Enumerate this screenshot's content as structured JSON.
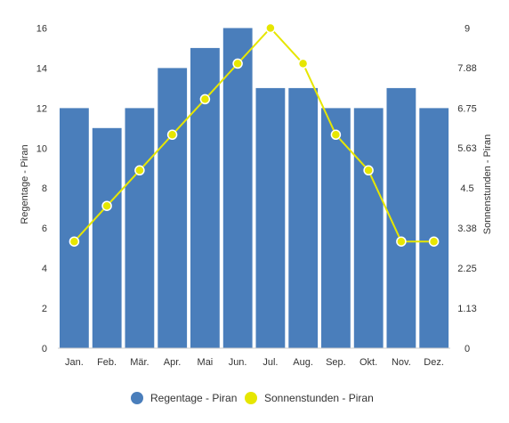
{
  "chart_data": {
    "type": "bar",
    "categories": [
      "Jan.",
      "Feb.",
      "Mär.",
      "Apr.",
      "Mai",
      "Jun.",
      "Jul.",
      "Aug.",
      "Sep.",
      "Okt.",
      "Nov.",
      "Dez."
    ],
    "series": [
      {
        "name": "Regentage - Piran",
        "type": "bar",
        "axis": "left",
        "color": "#4a7ebb",
        "values": [
          12,
          11,
          12,
          14,
          15,
          16,
          13,
          13,
          12,
          12,
          13,
          12
        ]
      },
      {
        "name": "Sonnenstunden - Piran",
        "type": "line",
        "axis": "right",
        "color": "#e6e600",
        "values": [
          3,
          4,
          5,
          6,
          7,
          8,
          9,
          8,
          6,
          5,
          3,
          3
        ]
      }
    ],
    "y_left": {
      "label": "Regentage - Piran",
      "ticks": [
        "0",
        "2",
        "4",
        "6",
        "8",
        "10",
        "12",
        "14",
        "16"
      ],
      "range": [
        0,
        17
      ]
    },
    "y_right": {
      "label": "Sonnenstunden - Piran",
      "ticks": [
        "0",
        "1.13",
        "2.25",
        "3.38",
        "4.5",
        "5.63",
        "6.75",
        "7.88",
        "9"
      ],
      "range": [
        0,
        9.5625
      ]
    },
    "legend": {
      "placement": "bottom"
    },
    "grid": false
  }
}
